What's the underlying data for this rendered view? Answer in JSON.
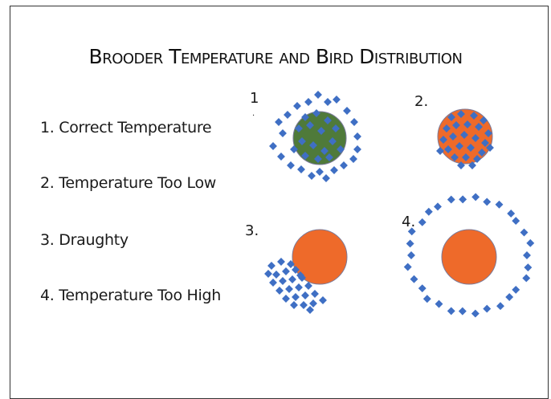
{
  "title": "Brooder Temperature and Bird Distribution",
  "legend": [
    "1. Correct Temperature",
    "2. Temperature Too Low",
    "3. Draughty",
    "4. Temperature Too High"
  ],
  "panels": [
    {
      "number": "1",
      "state": "correct-temperature",
      "brooder_color": "#4f7a3a"
    },
    {
      "number": "2.",
      "state": "temperature-too-low",
      "brooder_color": "#ee6a2a"
    },
    {
      "number": "3.",
      "state": "draughty",
      "brooder_color": "#ee6a2a"
    },
    {
      "number": "4.",
      "state": "temperature-too-high",
      "brooder_color": "#ee6a2a"
    }
  ],
  "colors": {
    "bird": "#3f6fc4",
    "brooder_edge": "#7a7a9a"
  }
}
